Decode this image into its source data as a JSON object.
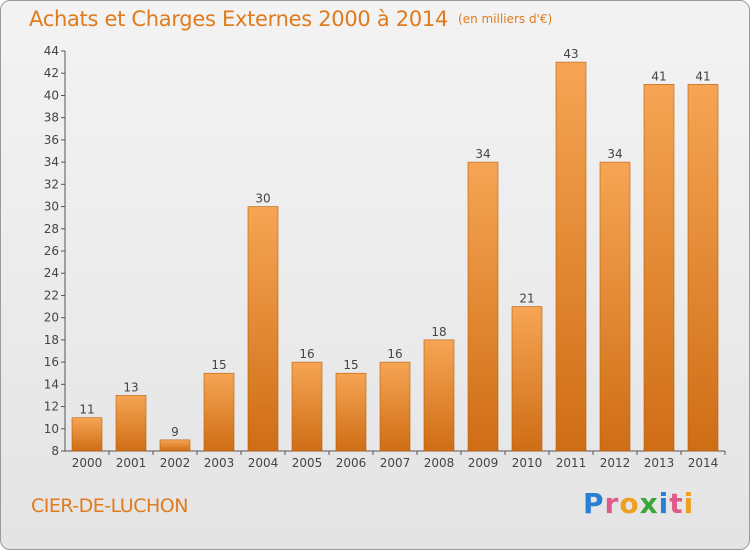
{
  "header": {
    "title": "Achats et Charges Externes 2000 à 2014",
    "subtitle": "(en milliers d'€)"
  },
  "footer": {
    "city": "CIER-DE-LUCHON"
  },
  "logo": {
    "text": "Proxiti",
    "colors": [
      "#2a7fd4",
      "#e05a8a",
      "#f0a020",
      "#3aa63a",
      "#2a7fd4",
      "#e05a8a",
      "#f0a020"
    ]
  },
  "colors": {
    "bar_top": "#f6a554",
    "bar_bottom": "#cf6d15",
    "bar_edge": "#b85e10",
    "axis": "#555555",
    "grid": "#c8c8c8",
    "accent": "#e07b1c"
  },
  "chart_data": {
    "type": "bar",
    "categories": [
      "2000",
      "2001",
      "2002",
      "2003",
      "2004",
      "2005",
      "2006",
      "2007",
      "2008",
      "2009",
      "2010",
      "2011",
      "2012",
      "2013",
      "2014"
    ],
    "values": [
      11,
      13,
      9,
      15,
      30,
      16,
      15,
      16,
      18,
      34,
      21,
      43,
      34,
      41,
      41
    ],
    "ylim": [
      8,
      44
    ],
    "yticks": [
      8,
      10,
      12,
      14,
      16,
      18,
      20,
      22,
      24,
      26,
      28,
      30,
      32,
      34,
      36,
      38,
      40,
      42,
      44
    ],
    "data_labels": true,
    "grid": false
  }
}
